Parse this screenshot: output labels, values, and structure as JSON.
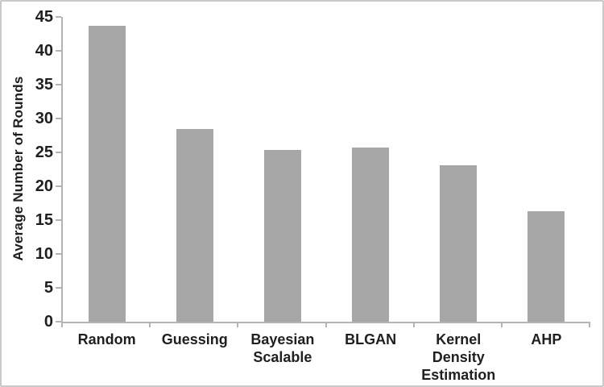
{
  "chart_data": {
    "type": "bar",
    "title": "",
    "xlabel": "",
    "ylabel": "Average Number of Rounds",
    "categories": [
      "Random",
      "Guessing",
      "Bayesian Scalable",
      "BLGAN",
      "Kernel Density Estimation",
      "AHP"
    ],
    "values": [
      43.7,
      28.5,
      25.4,
      25.7,
      23.1,
      16.3
    ],
    "ylim": [
      0,
      45
    ],
    "ytick_step": 5,
    "yticks": [
      0,
      5,
      10,
      15,
      20,
      25,
      30,
      35,
      40,
      45
    ],
    "grid": false,
    "legend": null,
    "bar_color": "#a6a6a6",
    "axis_color": "#b4b4b4",
    "text_color": "#1f1f1f",
    "frame_border_color": "#c9c9c9",
    "background_color": "#fefefe"
  }
}
